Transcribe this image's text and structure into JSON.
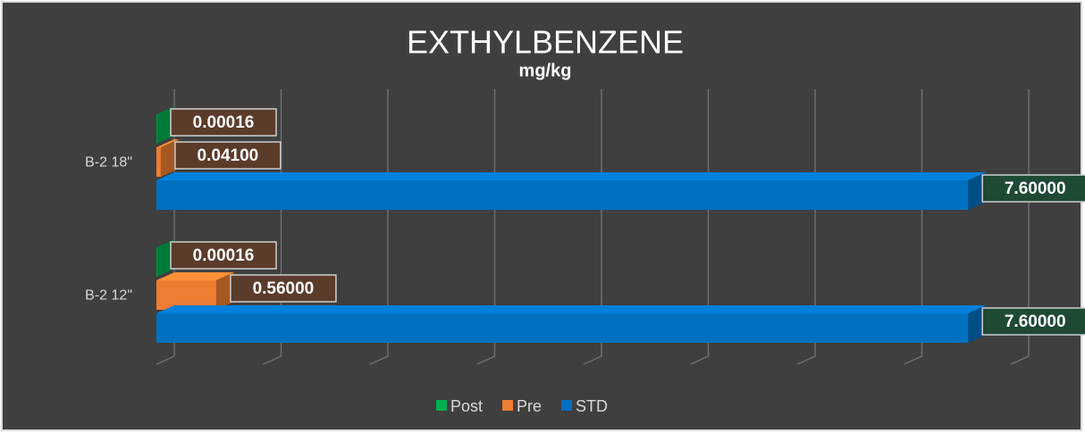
{
  "chart_data": {
    "type": "bar3d_horizontal",
    "title": "EXTHYLBENZENE",
    "subtitle": "mg/kg",
    "categories": [
      "B-2 18\"",
      "B-2 12\""
    ],
    "series": [
      {
        "name": "Post",
        "color": "#00b050",
        "values": [
          0.00016,
          0.00016
        ],
        "value_labels": [
          "0.00016",
          "0.00016"
        ]
      },
      {
        "name": "Pre",
        "color": "#ed7d31",
        "values": [
          0.041,
          0.56
        ],
        "value_labels": [
          "0.04100",
          "0.56000"
        ]
      },
      {
        "name": "STD",
        "color": "#0070c0",
        "values": [
          7.6,
          7.6
        ],
        "value_labels": [
          "7.60000",
          "7.60000"
        ]
      }
    ],
    "xlim": [
      0,
      8
    ],
    "xticks": [
      0,
      1,
      2,
      3,
      4,
      5,
      6,
      7,
      8
    ],
    "grid": true,
    "legend": "bottom"
  }
}
